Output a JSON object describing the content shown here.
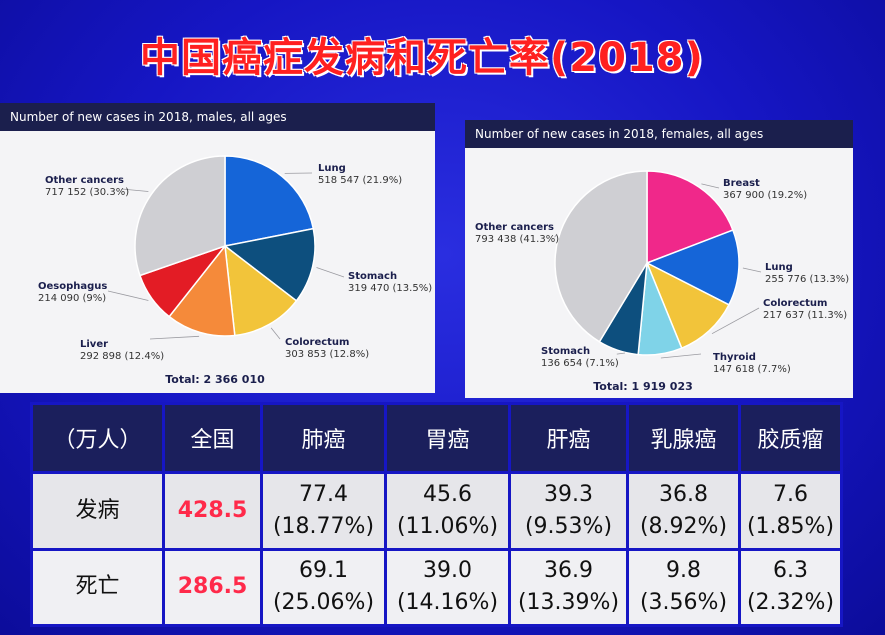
{
  "slide": {
    "title": "中国癌症发病和死亡率(2018)"
  },
  "chart_data": [
    {
      "type": "pie",
      "title": "Number of new cases in 2018, males, all ages",
      "total_label": "Total: 2 366 010",
      "slices": [
        {
          "name": "Lung",
          "value": 518547,
          "value_label": "518 547 (21.9%)",
          "percent": 21.9,
          "color": "#1565d8"
        },
        {
          "name": "Stomach",
          "value": 319470,
          "value_label": "319 470 (13.5%)",
          "percent": 13.5,
          "color": "#0d4f7e"
        },
        {
          "name": "Colorectum",
          "value": 303853,
          "value_label": "303 853 (12.8%)",
          "percent": 12.8,
          "color": "#f2c43a"
        },
        {
          "name": "Liver",
          "value": 292898,
          "value_label": "292 898 (12.4%)",
          "percent": 12.4,
          "color": "#f58a3a"
        },
        {
          "name": "Oesophagus",
          "value": 214090,
          "value_label": "214 090 (9%)",
          "percent": 9.0,
          "color": "#e31c25"
        },
        {
          "name": "Other cancers",
          "value": 717152,
          "value_label": "717 152 (30.3%)",
          "percent": 30.3,
          "color": "#cfcfd3"
        }
      ]
    },
    {
      "type": "pie",
      "title": "Number of new cases in 2018, females, all ages",
      "total_label": "Total: 1 919 023",
      "slices": [
        {
          "name": "Breast",
          "value": 367900,
          "value_label": "367 900 (19.2%)",
          "percent": 19.2,
          "color": "#f0288a"
        },
        {
          "name": "Lung",
          "value": 255776,
          "value_label": "255 776 (13.3%)",
          "percent": 13.3,
          "color": "#1565d8"
        },
        {
          "name": "Colorectum",
          "value": 217637,
          "value_label": "217 637 (11.3%)",
          "percent": 11.3,
          "color": "#f2c43a"
        },
        {
          "name": "Thyroid",
          "value": 147618,
          "value_label": "147 618 (7.7%)",
          "percent": 7.7,
          "color": "#7fd3e8"
        },
        {
          "name": "Stomach",
          "value": 136654,
          "value_label": "136 654 (7.1%)",
          "percent": 7.1,
          "color": "#0d4f7e"
        },
        {
          "name": "Other cancers",
          "value": 793438,
          "value_label": "793 438 (41.3%)",
          "percent": 41.3,
          "color": "#cfcfd3"
        }
      ]
    }
  ],
  "table": {
    "headers": [
      "（万人）",
      "全国",
      "肺癌",
      "胃癌",
      "肝癌",
      "乳腺癌",
      "胶质瘤"
    ],
    "rows": [
      {
        "label": "发病",
        "total": "428.5",
        "cells": [
          {
            "value": "77.4",
            "pct": "(18.77%)"
          },
          {
            "value": "45.6",
            "pct": "(11.06%)"
          },
          {
            "value": "39.3",
            "pct": "(9.53%)"
          },
          {
            "value": "36.8",
            "pct": "(8.92%)"
          },
          {
            "value": "7.6",
            "pct": "(1.85%)"
          }
        ]
      },
      {
        "label": "死亡",
        "total": "286.5",
        "cells": [
          {
            "value": "69.1",
            "pct": "(25.06%)"
          },
          {
            "value": "39.0",
            "pct": "(14.16%)"
          },
          {
            "value": "36.9",
            "pct": "(13.39%)"
          },
          {
            "value": "9.8",
            "pct": "(3.56%)"
          },
          {
            "value": "6.3",
            "pct": "(2.32%)"
          }
        ]
      }
    ]
  }
}
